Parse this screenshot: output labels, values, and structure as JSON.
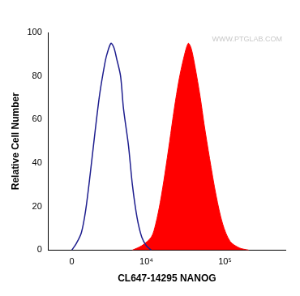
{
  "chart_data": {
    "type": "line",
    "x_label": "CL647-14295 NANOG",
    "y_label": "Relative Cell Number",
    "annotations": [
      "WWW.PTGLAB.COM"
    ],
    "log": "x",
    "grid": false,
    "xlim": [
      -1700,
      580000
    ],
    "xticks": [
      0,
      {
        "value": 10000,
        "label": "10⁴"
      },
      {
        "value": 100000,
        "label": "10⁵"
      }
    ],
    "ylim": [
      0,
      100
    ],
    "yticks": [
      0,
      20,
      40,
      60,
      80,
      100
    ],
    "series": [
      {
        "type": "line",
        "color": "#1f1f8f",
        "x": [
          0,
          300,
          650,
          950,
          1300,
          1700,
          2100,
          2550,
          2800,
          3250,
          3600,
          3950,
          4500,
          4950,
          5800,
          6550,
          7550,
          8700,
          10000,
          11600
        ],
        "values": [
          0,
          3,
          8,
          18,
          35,
          55,
          72,
          85,
          90,
          95,
          93,
          88,
          80,
          65,
          48,
          30,
          15,
          6,
          2,
          0
        ]
      },
      {
        "type": "area",
        "color": "#ff0000",
        "x": [
          6550,
          8700,
          11600,
          13200,
          15100,
          17300,
          19900,
          22800,
          26100,
          29900,
          34200,
          37100,
          41400,
          48700,
          54300,
          63900,
          77200,
          93400,
          116000,
          152000,
          199000
        ],
        "values": [
          0,
          2,
          6,
          12,
          22,
          35,
          50,
          65,
          78,
          88,
          95,
          93,
          85,
          70,
          58,
          42,
          25,
          12,
          4,
          1,
          0
        ]
      }
    ]
  }
}
